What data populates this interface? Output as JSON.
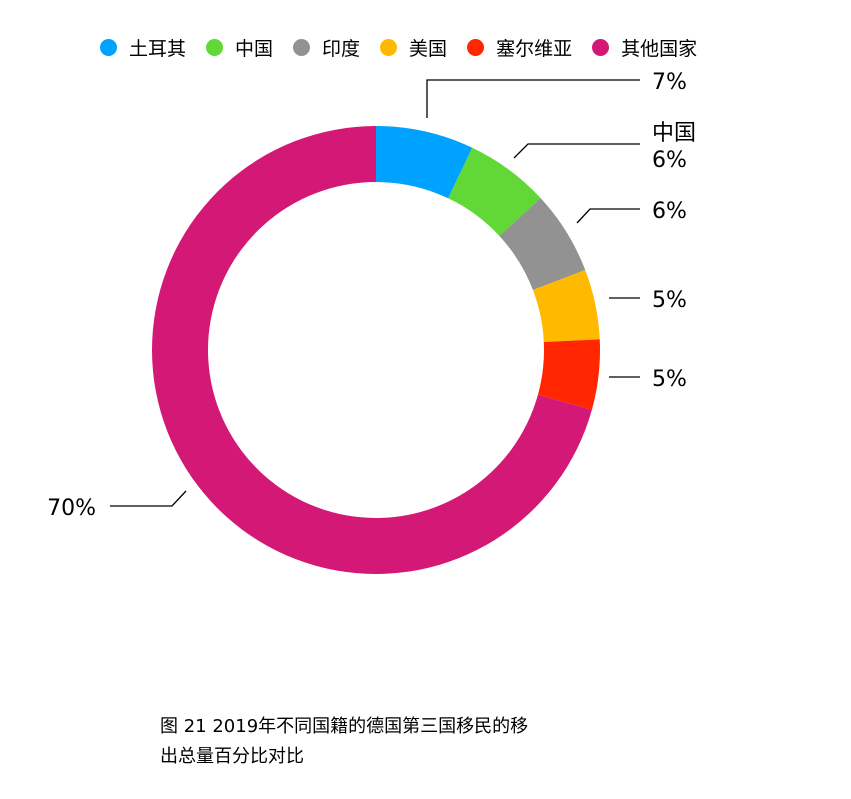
{
  "chart_data": {
    "type": "pie",
    "categories": [
      "土耳其",
      "中国",
      "印度",
      "美国",
      "塞尔维亚",
      "其他国家"
    ],
    "values": [
      7,
      6,
      6,
      5,
      5,
      70
    ],
    "colors": [
      "#00A2FF",
      "#61D836",
      "#929292",
      "#FFBA00",
      "#FF2600",
      "#D41876"
    ],
    "data_labels": [
      "7%",
      "6%",
      "6%",
      "5%",
      "5%",
      "70%"
    ],
    "legend": "top"
  },
  "caption": {
    "line1": "图 21 2019年不同国籍的德国第三国移民的移",
    "line2": "出总量百分比对比"
  }
}
